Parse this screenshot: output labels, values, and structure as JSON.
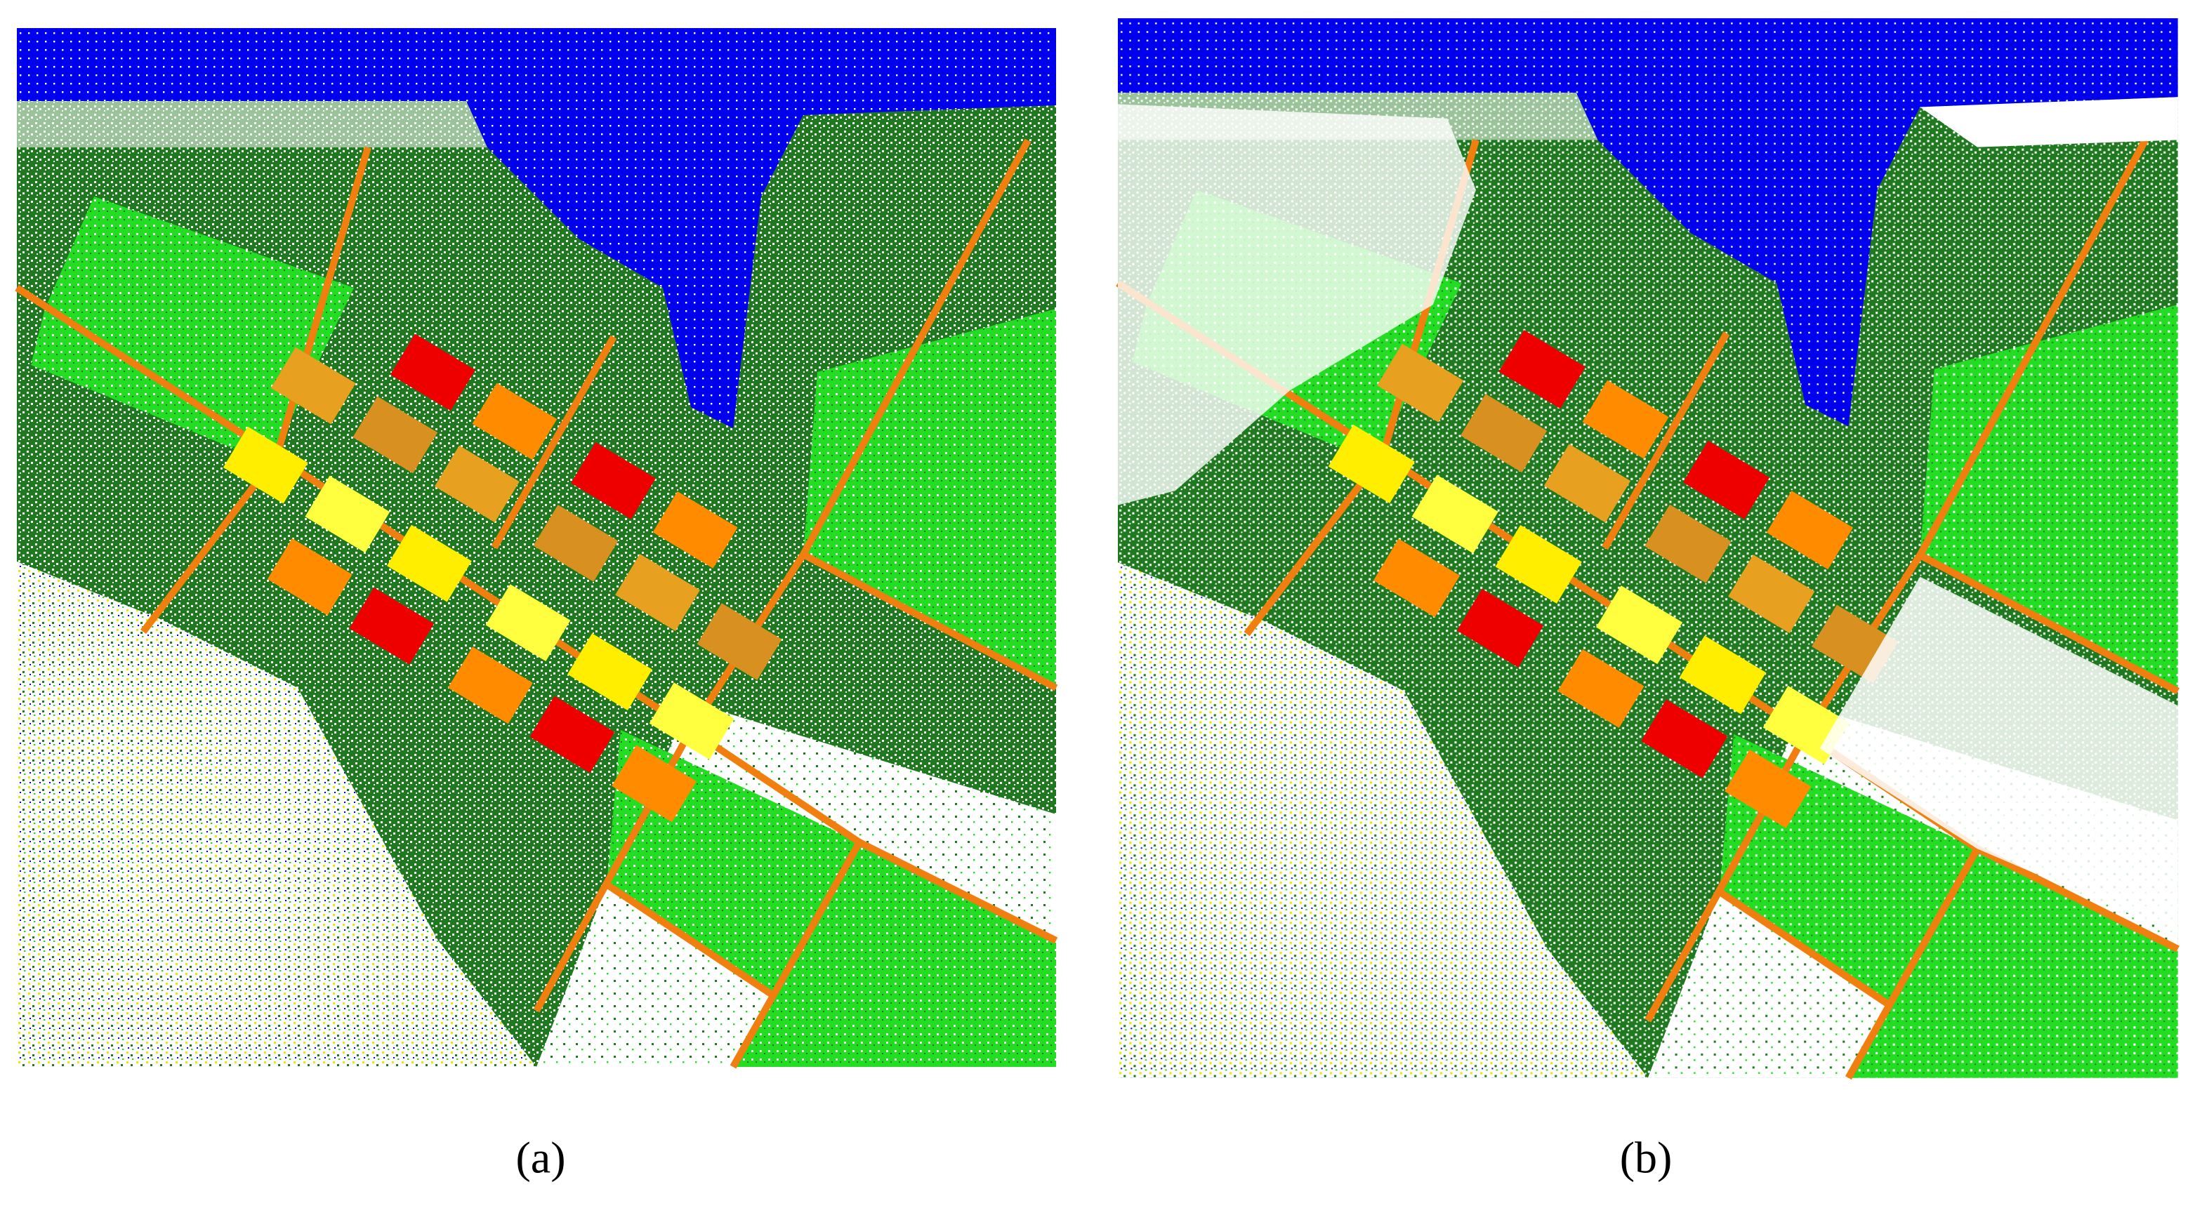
{
  "panels": [
    {
      "label": "(a)"
    },
    {
      "label": "(b)"
    }
  ]
}
